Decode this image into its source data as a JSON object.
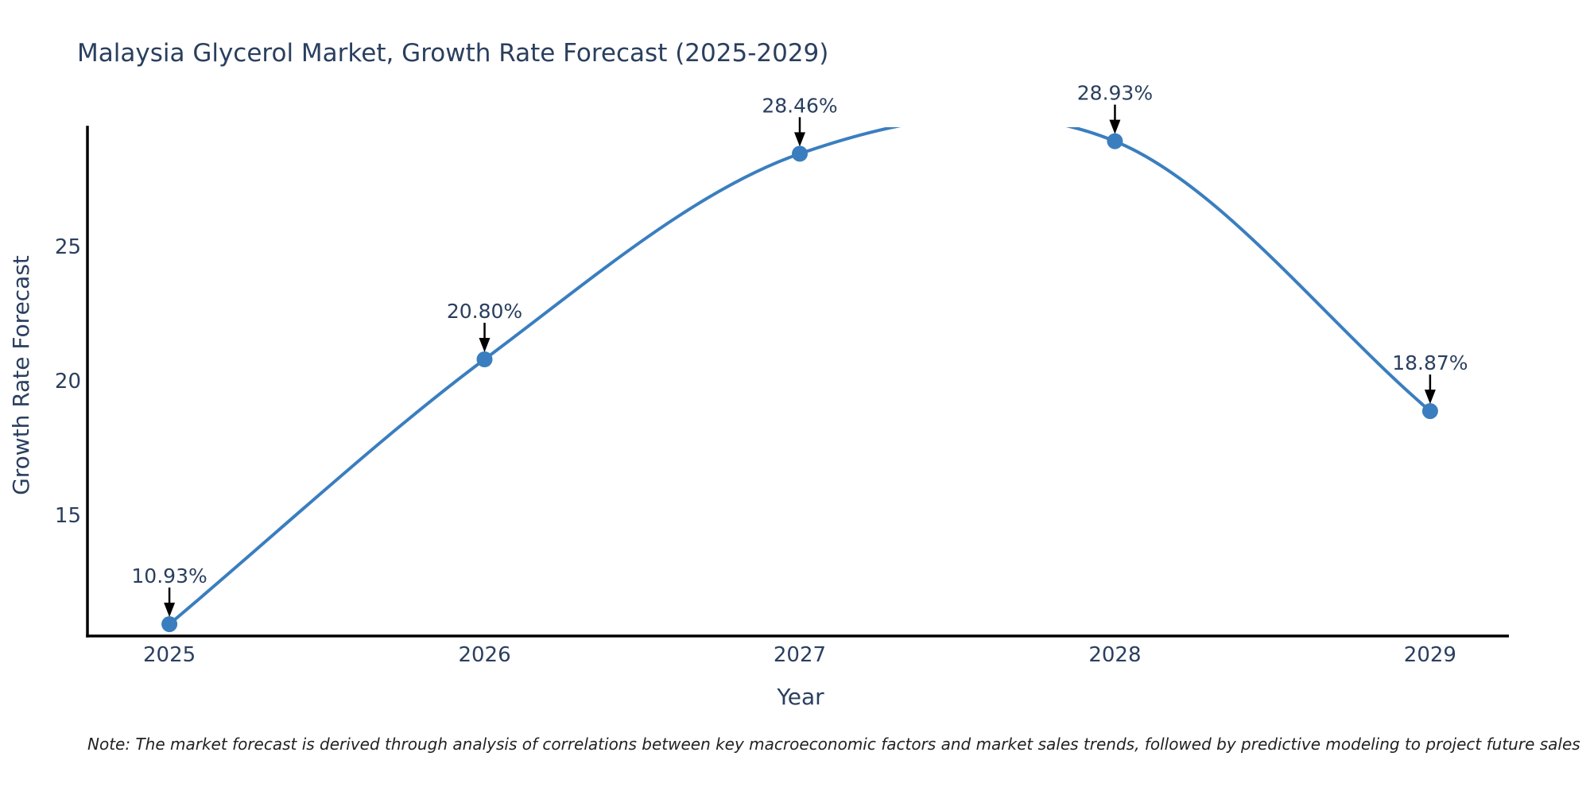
{
  "footnote": "Note: The market forecast is derived through analysis of correlations between key macroeconomic factors and market sales trends, followed by predictive modeling to project future sales",
  "chart_data": {
    "type": "line",
    "title": "Malaysia Glycerol Market, Growth Rate Forecast (2025-2029)",
    "xlabel": "Year",
    "ylabel": "Growth Rate Forecast",
    "x": [
      2025,
      2026,
      2027,
      2028,
      2029
    ],
    "values": [
      10.93,
      20.8,
      28.46,
      28.93,
      18.87
    ],
    "point_labels": [
      "10.93%",
      "20.80%",
      "28.46%",
      "28.93%",
      "18.87%"
    ],
    "xticks": [
      2025,
      2026,
      2027,
      2028,
      2029
    ],
    "yticks": [
      15,
      20,
      25
    ],
    "xlim": [
      2024.74,
      2029.25
    ],
    "ylim": [
      10.49,
      29.45
    ],
    "grid": false,
    "legend": "none",
    "line_shape": "spline",
    "line_clipped_at_plot_top": true,
    "colors": {
      "line": "#3a7ebf",
      "marker": "#3a7ebf",
      "arrow": "#000000",
      "text": "#2a3f5f",
      "axis": "#000000",
      "note_text": "#222222"
    }
  }
}
